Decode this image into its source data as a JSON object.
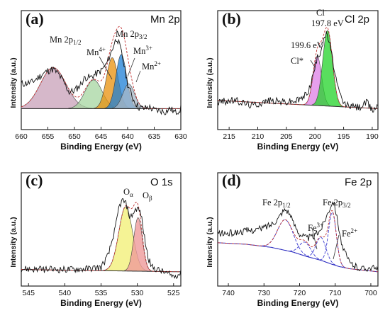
{
  "figure": {
    "background": "#ffffff",
    "frame_color": "#222222"
  },
  "chart_data": [
    {
      "type": "line",
      "panel": "(a)",
      "element": "Mn 2p",
      "xlabel": "Binding Energy (eV)",
      "ylabel": "Intensity (a.u.)",
      "xlim": [
        660,
        630
      ],
      "xticks": [
        660,
        655,
        650,
        645,
        640,
        635,
        630
      ],
      "annotations": [
        {
          "text": "Mn 2p",
          "sub": "1/2",
          "sup": ""
        },
        {
          "text": "Mn 2p",
          "sub": "3/2",
          "sup": ""
        },
        {
          "text": "Mn",
          "sub": "",
          "sup": "4+"
        },
        {
          "text": "Mn",
          "sub": "",
          "sup": "3+"
        },
        {
          "text": "Mn",
          "sub": "",
          "sup": "2+"
        }
      ],
      "background": {
        "x": [
          660,
          630
        ],
        "y": [
          0.1,
          0.1
        ]
      },
      "peaks": [
        {
          "center": 654.0,
          "height": 0.5,
          "width": 2.4,
          "color": "#c8a0b8"
        },
        {
          "center": 646.4,
          "height": 0.35,
          "width": 1.6,
          "color": "#a6d6a0"
        },
        {
          "center": 642.9,
          "height": 0.62,
          "width": 1.1,
          "color": "#e8900c"
        },
        {
          "center": 641.2,
          "height": 0.66,
          "width": 1.0,
          "color": "#1c7fd6"
        },
        {
          "center": 639.8,
          "height": 0.3,
          "width": 1.1,
          "color": "#a8b8c8"
        }
      ],
      "raw": {
        "x": [
          660,
          658,
          656,
          655,
          654,
          653,
          652,
          651,
          650,
          649,
          648,
          647,
          646,
          645,
          644,
          643,
          642.5,
          642,
          641.5,
          641,
          640,
          639,
          638,
          637,
          636,
          635,
          634,
          633,
          632,
          631,
          630
        ],
        "y": [
          0.4,
          0.42,
          0.52,
          0.56,
          0.58,
          0.52,
          0.42,
          0.3,
          0.32,
          0.38,
          0.48,
          0.48,
          0.52,
          0.56,
          0.64,
          0.8,
          0.9,
          0.96,
          0.86,
          0.74,
          0.4,
          0.22,
          0.12,
          0.1,
          0.12,
          0.08,
          0.08,
          0.06,
          0.1,
          0.05,
          0.1
        ]
      }
    },
    {
      "type": "line",
      "panel": "(b)",
      "element": "Cl 2p",
      "xlabel": "Binding Energy (eV)",
      "ylabel": "Intensity (a.u.)",
      "xlim": [
        217,
        189
      ],
      "xticks": [
        215,
        210,
        205,
        200,
        195,
        190
      ],
      "annotations": [
        {
          "text": "Cl",
          "sub": "",
          "sup": "-"
        },
        {
          "text": "197.8 eV",
          "sub": "",
          "sup": ""
        },
        {
          "text": "199.6 eV",
          "sub": "",
          "sup": ""
        },
        {
          "text": "Cl*",
          "sub": "",
          "sup": ""
        }
      ],
      "background": {
        "x": [
          217,
          189
        ],
        "y": [
          0.2,
          0.1
        ]
      },
      "peaks": [
        {
          "center": 199.6,
          "height": 0.6,
          "width": 0.75,
          "color": "#dd7fe6"
        },
        {
          "center": 197.8,
          "height": 0.92,
          "width": 0.85,
          "color": "#22d328"
        }
      ],
      "raw": {
        "x": [
          217,
          214,
          211,
          208,
          205,
          203,
          202,
          201,
          200,
          199.5,
          199,
          198.5,
          198,
          197.5,
          197,
          196,
          195,
          194,
          193,
          192,
          191,
          190,
          189
        ],
        "y": [
          0.18,
          0.2,
          0.14,
          0.2,
          0.18,
          0.2,
          0.24,
          0.34,
          0.6,
          0.74,
          0.8,
          0.96,
          1.0,
          0.92,
          0.72,
          0.34,
          0.16,
          0.14,
          0.12,
          0.12,
          0.18,
          0.08,
          0.14
        ]
      }
    },
    {
      "type": "line",
      "panel": "(c)",
      "element": "O 1s",
      "xlabel": "Binding Energy (eV)",
      "ylabel": "Intensity (a.u.)",
      "xlim": [
        546,
        524
      ],
      "xticks": [
        545,
        540,
        535,
        530,
        525
      ],
      "annotations": [
        {
          "text": "O",
          "sub": "α",
          "sup": ""
        },
        {
          "text": "O",
          "sub": "β",
          "sup": ""
        }
      ],
      "background": {
        "x": [
          546,
          524
        ],
        "y": [
          0.05,
          0.02
        ]
      },
      "peaks": [
        {
          "center": 531.6,
          "height": 0.84,
          "width": 0.95,
          "color": "#f2f07a"
        },
        {
          "center": 529.9,
          "height": 0.7,
          "width": 0.6,
          "color": "#ef9a9a"
        }
      ],
      "raw": {
        "x": [
          546,
          543,
          540,
          537,
          535,
          534,
          533,
          532.5,
          532,
          531.5,
          531,
          530.5,
          530,
          529.5,
          529,
          528.5,
          528,
          527,
          526,
          525,
          524
        ],
        "y": [
          0.06,
          0.05,
          0.05,
          0.06,
          0.08,
          0.24,
          0.6,
          0.88,
          0.96,
          0.9,
          0.72,
          0.8,
          0.86,
          0.78,
          0.46,
          0.2,
          0.08,
          0.04,
          0.0,
          -0.04,
          0.0
        ]
      }
    },
    {
      "type": "line",
      "panel": "(d)",
      "element": "Fe 2p",
      "xlabel": "Binding Energy (eV)",
      "ylabel": "Intensity (a.u.)",
      "xlim": [
        743,
        698
      ],
      "xticks": [
        740,
        730,
        720,
        710,
        700
      ],
      "annotations": [
        {
          "text": "Fe 2p",
          "sub": "1/2",
          "sup": ""
        },
        {
          "text": "Fe 2p",
          "sub": "3/2",
          "sup": ""
        },
        {
          "text": "Fe",
          "sub": "",
          "sup": "3+"
        },
        {
          "text": "Fe",
          "sub": "",
          "sup": "2+"
        }
      ],
      "background": {
        "x": [
          743,
          735,
          728,
          722,
          718,
          714,
          711,
          709,
          706,
          702,
          698
        ],
        "y": [
          0.4,
          0.38,
          0.34,
          0.28,
          0.22,
          0.17,
          0.12,
          0.09,
          0.06,
          0.04,
          0.02
        ]
      },
      "peaks": [
        {
          "center": 724.0,
          "height": 0.4,
          "width": 2.2,
          "color": "#3a3ad0"
        },
        {
          "center": 718.5,
          "height": 0.18,
          "width": 1.6,
          "color": "#3a3ad0"
        },
        {
          "center": 714.0,
          "height": 0.3,
          "width": 1.4,
          "color": "#3a3ad0"
        },
        {
          "center": 710.8,
          "height": 0.68,
          "width": 1.1,
          "color": "#3a3ad0"
        }
      ],
      "raw": {
        "x": [
          743,
          740,
          737,
          734,
          731,
          728,
          726,
          725,
          724,
          723,
          722,
          720,
          718,
          716,
          714,
          712,
          711,
          710.5,
          710,
          709,
          708,
          706,
          704,
          702,
          700,
          698
        ],
        "y": [
          0.52,
          0.52,
          0.54,
          0.56,
          0.58,
          0.64,
          0.72,
          0.8,
          0.84,
          0.8,
          0.68,
          0.52,
          0.46,
          0.48,
          0.58,
          0.8,
          0.92,
          0.94,
          0.86,
          0.6,
          0.34,
          0.14,
          0.08,
          0.06,
          0.08,
          0.04
        ]
      }
    }
  ]
}
